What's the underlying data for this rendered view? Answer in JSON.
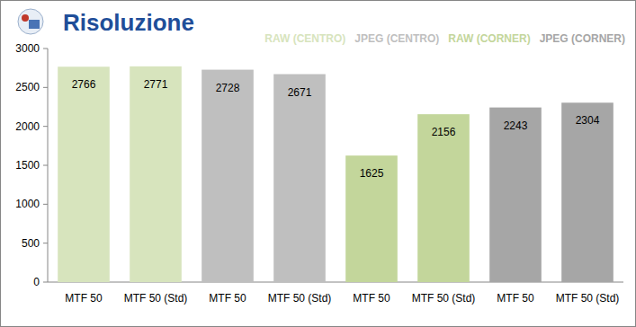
{
  "chart_data": {
    "type": "bar",
    "title": "Risoluzione",
    "categories": [
      "MTF 50",
      "MTF 50 (Std)",
      "MTF 50",
      "MTF 50 (Std)",
      "MTF 50",
      "MTF 50 (Std)",
      "MTF 50",
      "MTF 50 (Std)"
    ],
    "series": [
      {
        "name": "RAW (CENTRO)",
        "color": "#d7e4bd",
        "values": [
          2766,
          2771,
          null,
          null,
          null,
          null,
          null,
          null
        ]
      },
      {
        "name": "JPEG (CENTRO)",
        "color": "#bfbfbf",
        "values": [
          null,
          null,
          2728,
          2671,
          null,
          null,
          null,
          null
        ]
      },
      {
        "name": "RAW (CORNER)",
        "color": "#c3d69b",
        "values": [
          null,
          null,
          null,
          null,
          1625,
          2156,
          null,
          null
        ]
      },
      {
        "name": "JPEG (CORNER)",
        "color": "#a6a6a6",
        "values": [
          null,
          null,
          null,
          null,
          null,
          null,
          2243,
          2304
        ]
      }
    ],
    "ylim": [
      0,
      3000
    ],
    "yticks": [
      0,
      500,
      1000,
      1500,
      2000,
      2500,
      3000
    ],
    "grid": false,
    "legend": "top-right",
    "data_labels": true
  }
}
